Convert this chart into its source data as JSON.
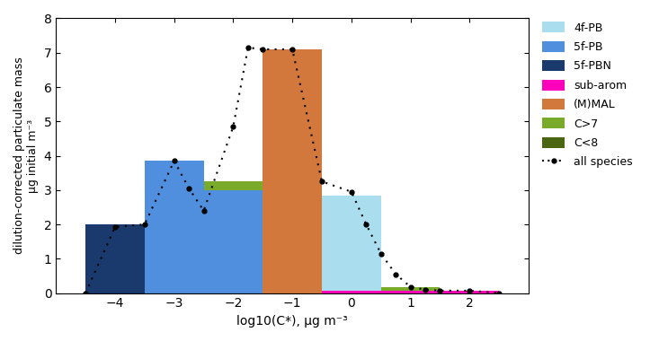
{
  "bin_centers": [
    -4,
    -3,
    -2,
    -1,
    0,
    1,
    2
  ],
  "bin_width": 1.0,
  "species": {
    "C>7": {
      "color": "#7aaa2a",
      "values": [
        1.9,
        1.35,
        3.25,
        3.25,
        1.1,
        0.18,
        0.06
      ]
    },
    "C<8": {
      "color": "#4a6610",
      "values": [
        0,
        0,
        0.8,
        0.8,
        0,
        0,
        0
      ]
    },
    "(M)MAL": {
      "color": "#d2783c",
      "values": [
        0,
        0,
        2.4,
        7.1,
        0,
        0,
        0
      ]
    },
    "5f-PBN": {
      "color": "#1a3a6e",
      "values": [
        2.0,
        2.0,
        0,
        0,
        0,
        0,
        0
      ]
    },
    "5f-PB": {
      "color": "#4f8fdd",
      "values": [
        0,
        3.85,
        3.0,
        0,
        0,
        0,
        0
      ]
    },
    "4f-PB": {
      "color": "#aaddee",
      "values": [
        0,
        0,
        0,
        0,
        2.85,
        0,
        0
      ]
    },
    "sub-arom": {
      "color": "#ff00bb",
      "values": [
        0,
        0,
        0,
        0,
        0.07,
        0.07,
        0.06
      ]
    }
  },
  "layer_order": [
    "C>7",
    "C<8",
    "(M)MAL",
    "5f-PBN",
    "5f-PB",
    "4f-PB",
    "sub-arom"
  ],
  "dotted_x": [
    -4.5,
    -4.0,
    -3.5,
    -3.0,
    -2.75,
    -2.5,
    -2.0,
    -1.75,
    -1.5,
    -1.0,
    -0.5,
    0.0,
    0.25,
    0.5,
    0.75,
    1.0,
    1.25,
    1.5,
    2.0,
    2.5
  ],
  "dotted_y": [
    0.0,
    1.93,
    2.0,
    3.85,
    3.05,
    2.4,
    4.85,
    7.15,
    7.1,
    7.1,
    3.25,
    2.95,
    2.0,
    1.15,
    0.55,
    0.18,
    0.1,
    0.07,
    0.07,
    0.0
  ],
  "xlim": [
    -5.0,
    3.0
  ],
  "ylim": [
    0,
    8
  ],
  "xticks": [
    -4,
    -3,
    -2,
    -1,
    0,
    1,
    2
  ],
  "yticks": [
    0,
    1,
    2,
    3,
    4,
    5,
    6,
    7,
    8
  ],
  "xlabel": "log10(C*), μg m⁻³",
  "ylabel": "dilution-corrected particulate mass\nμg initial m⁻³",
  "legend_order": [
    "4f-PB",
    "5f-PB",
    "5f-PBN",
    "sub-arom",
    "(M)MAL",
    "C>7",
    "C<8",
    "all species"
  ],
  "figsize": [
    7.23,
    3.8
  ],
  "dpi": 100
}
